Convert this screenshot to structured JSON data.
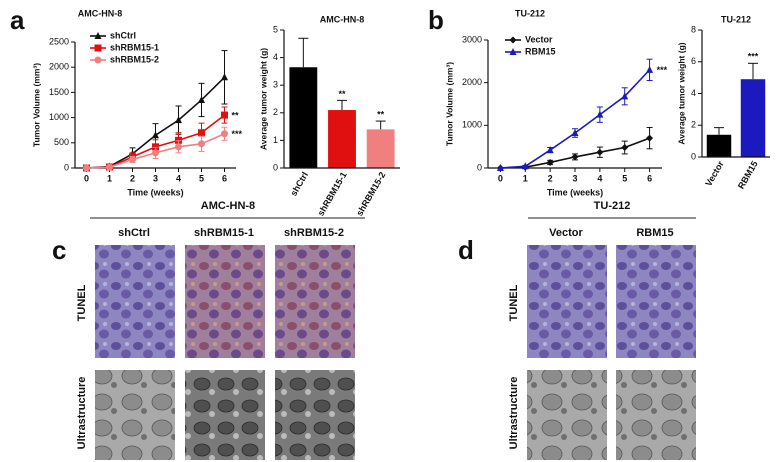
{
  "panel_labels": [
    "a",
    "b",
    "c",
    "d"
  ],
  "chart_data": [
    {
      "type": "line",
      "title": "AMC-HN-8",
      "x_label": "Time (weeks)",
      "y_label": "Tumor Volume (mm³)",
      "x": [
        0,
        1,
        2,
        3,
        4,
        5,
        6
      ],
      "xlim": [
        -0.5,
        6.5
      ],
      "xticks": [
        0,
        1,
        2,
        3,
        4,
        5,
        6
      ],
      "ylim": [
        0,
        2500
      ],
      "yticks": [
        0,
        500,
        1000,
        1500,
        2000,
        2500
      ],
      "legend": "upper left",
      "series": [
        {
          "name": "shCtrl",
          "color": "#111111",
          "marker": "triangle",
          "values": [
            0,
            30,
            280,
            650,
            950,
            1350,
            1800
          ],
          "errors": [
            0,
            20,
            120,
            230,
            280,
            330,
            530
          ]
        },
        {
          "name": "shRBM15-1",
          "color": "#e01010",
          "marker": "square",
          "values": [
            0,
            20,
            220,
            420,
            550,
            700,
            1050
          ],
          "errors": [
            0,
            15,
            80,
            140,
            150,
            190,
            160
          ],
          "annotation": "**"
        },
        {
          "name": "shRBM15-2",
          "color": "#f08080",
          "marker": "circle",
          "values": [
            0,
            15,
            170,
            300,
            420,
            480,
            680
          ],
          "errors": [
            0,
            10,
            60,
            110,
            120,
            150,
            130
          ],
          "annotation": "***"
        }
      ]
    },
    {
      "type": "bar",
      "title": "AMC-HN-8",
      "y_label": "Average tumor weight (g)",
      "categories": [
        "shCtrl",
        "shRBM15-1",
        "shRBM15-2"
      ],
      "values": [
        3.65,
        2.1,
        1.4
      ],
      "errors": [
        1.05,
        0.35,
        0.3
      ],
      "colors": [
        "#000000",
        "#e01010",
        "#f08080"
      ],
      "value_annotations": [
        null,
        "**",
        "**"
      ],
      "ylim": [
        0,
        5
      ],
      "yticks": [
        0,
        1,
        2,
        3,
        4,
        5
      ]
    },
    {
      "type": "line",
      "title": "TU-212",
      "x_label": "Time (weeks)",
      "y_label": "Tumor Volume (mm³)",
      "x": [
        0,
        1,
        2,
        3,
        4,
        5,
        6
      ],
      "xlim": [
        -0.5,
        6.5
      ],
      "xticks": [
        0,
        1,
        2,
        3,
        4,
        5,
        6
      ],
      "ylim": [
        0,
        3000
      ],
      "yticks": [
        0,
        1000,
        2000,
        3000
      ],
      "legend": "upper left",
      "series": [
        {
          "name": "Vector",
          "color": "#111111",
          "marker": "diamond",
          "values": [
            0,
            20,
            130,
            260,
            370,
            480,
            700
          ],
          "errors": [
            0,
            15,
            50,
            70,
            120,
            150,
            250
          ]
        },
        {
          "name": "RBM15",
          "color": "#1a1abf",
          "marker": "triangle",
          "values": [
            0,
            40,
            420,
            820,
            1250,
            1680,
            2300
          ],
          "errors": [
            0,
            20,
            60,
            100,
            180,
            200,
            250
          ],
          "annotation": "***"
        }
      ]
    },
    {
      "type": "bar",
      "title": "TU-212",
      "y_label": "Average tumor weight (g)",
      "categories": [
        "Vector",
        "RBM15"
      ],
      "values": [
        1.4,
        4.9
      ],
      "errors": [
        0.45,
        1.0
      ],
      "colors": [
        "#000000",
        "#1a1abf"
      ],
      "value_annotations": [
        null,
        "***"
      ],
      "ylim": [
        0,
        8
      ],
      "yticks": [
        0,
        2,
        4,
        6,
        8
      ]
    }
  ],
  "image_panels": [
    {
      "header": "AMC-HN-8",
      "columns": [
        "shCtrl",
        "shRBM15-1",
        "shRBM15-2"
      ],
      "rows": [
        "TUNEL",
        "Ultrastructure"
      ]
    },
    {
      "header": "TU-212",
      "columns": [
        "Vector",
        "RBM15"
      ],
      "rows": [
        "TUNEL",
        "Ultrastructure"
      ]
    }
  ]
}
